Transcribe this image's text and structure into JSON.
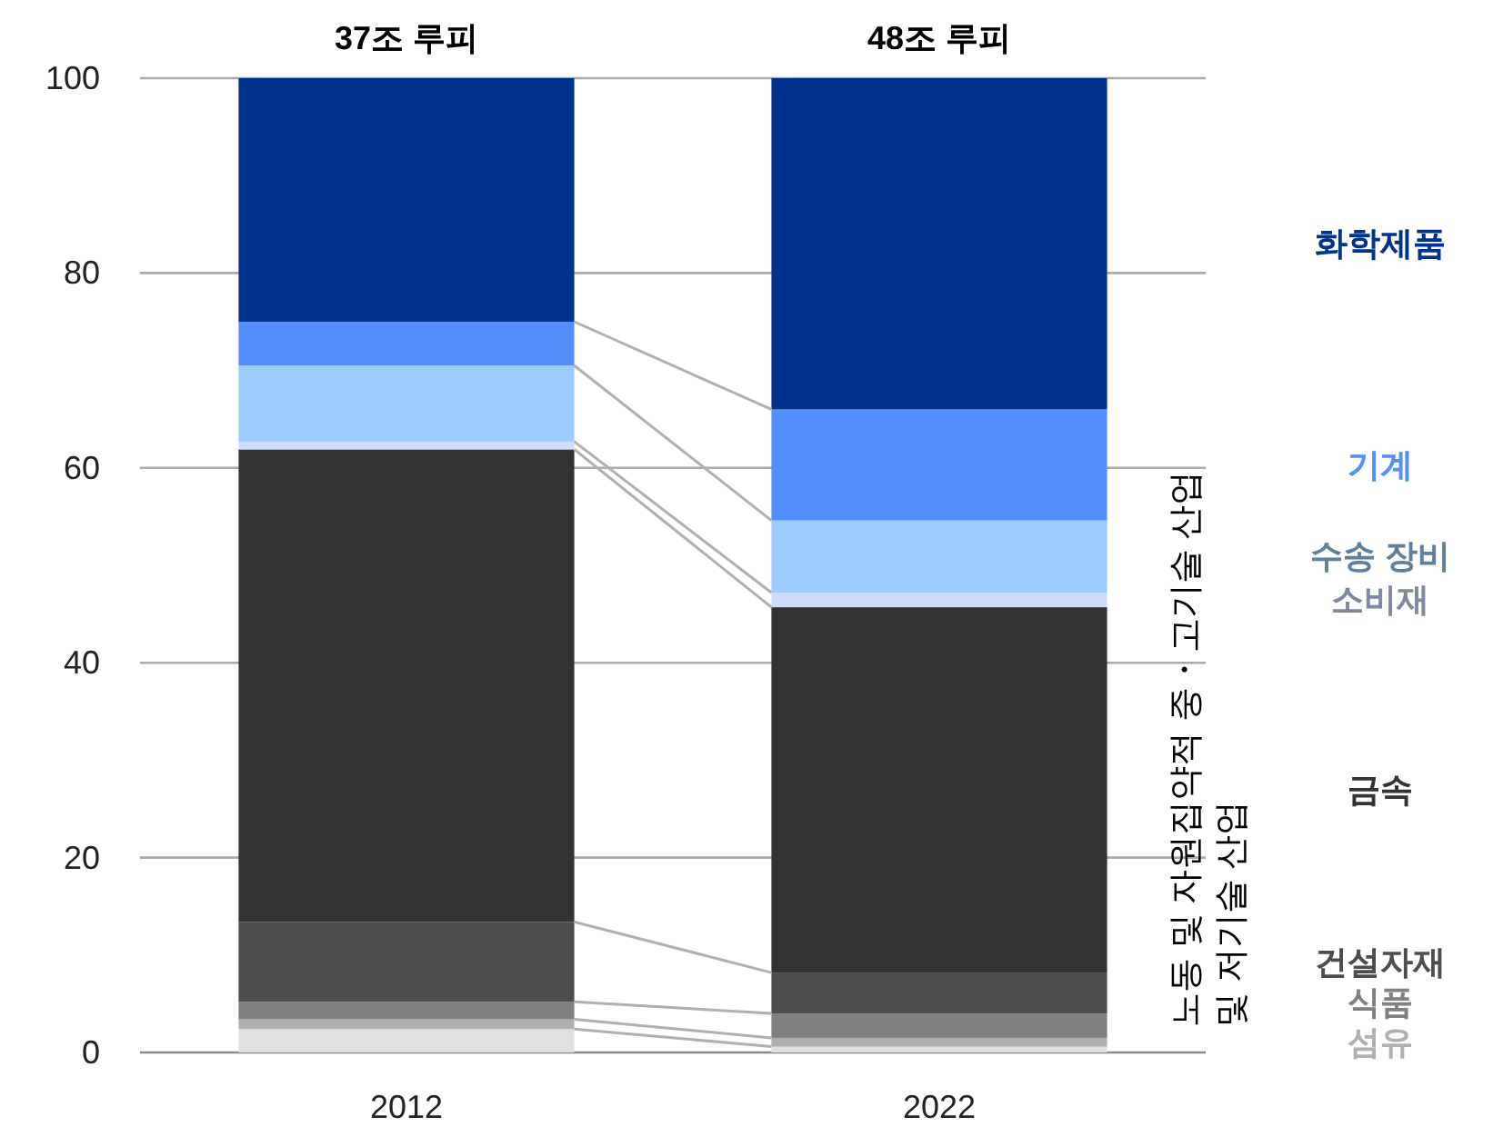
{
  "chart_data": {
    "type": "bar",
    "stacked": true,
    "categories": [
      "2012",
      "2022"
    ],
    "series": [
      {
        "color": "#e0e0e0",
        "values": [
          2.4,
          0.6
        ]
      },
      {
        "name": "섬유",
        "color": "#b0b0b0",
        "values": [
          1.0,
          0.9
        ]
      },
      {
        "name": "식품",
        "color": "#808080",
        "values": [
          1.8,
          2.5
        ]
      },
      {
        "name": "건설자재",
        "color": "#4d4d4d",
        "values": [
          8.2,
          4.2
        ]
      },
      {
        "name": "금속",
        "color": "#333333",
        "values": [
          48.5,
          37.5
        ]
      },
      {
        "name": "소비재",
        "color": "#cddcff",
        "values": [
          0.8,
          1.5
        ]
      },
      {
        "name": "수송 장비",
        "color": "#9ccbff",
        "values": [
          7.8,
          7.4
        ]
      },
      {
        "name": "기계",
        "color": "#528ffd",
        "values": [
          4.5,
          11.4
        ]
      },
      {
        "name": "화학제품",
        "color": "#00338d",
        "values": [
          25.0,
          34.0
        ]
      }
    ],
    "ylim": [
      0,
      100
    ],
    "yticks": [
      0,
      20,
      40,
      60,
      80,
      100
    ],
    "grid": "y",
    "legend": false,
    "annotations": [
      {
        "text": "37조 루피",
        "x": "2012",
        "y": 100
      },
      {
        "text": "48조 루피",
        "x": "2022",
        "y": 100
      },
      "노동 및 자원집약적 중・고기술 산업\n및 저기술 산업"
    ]
  }
}
